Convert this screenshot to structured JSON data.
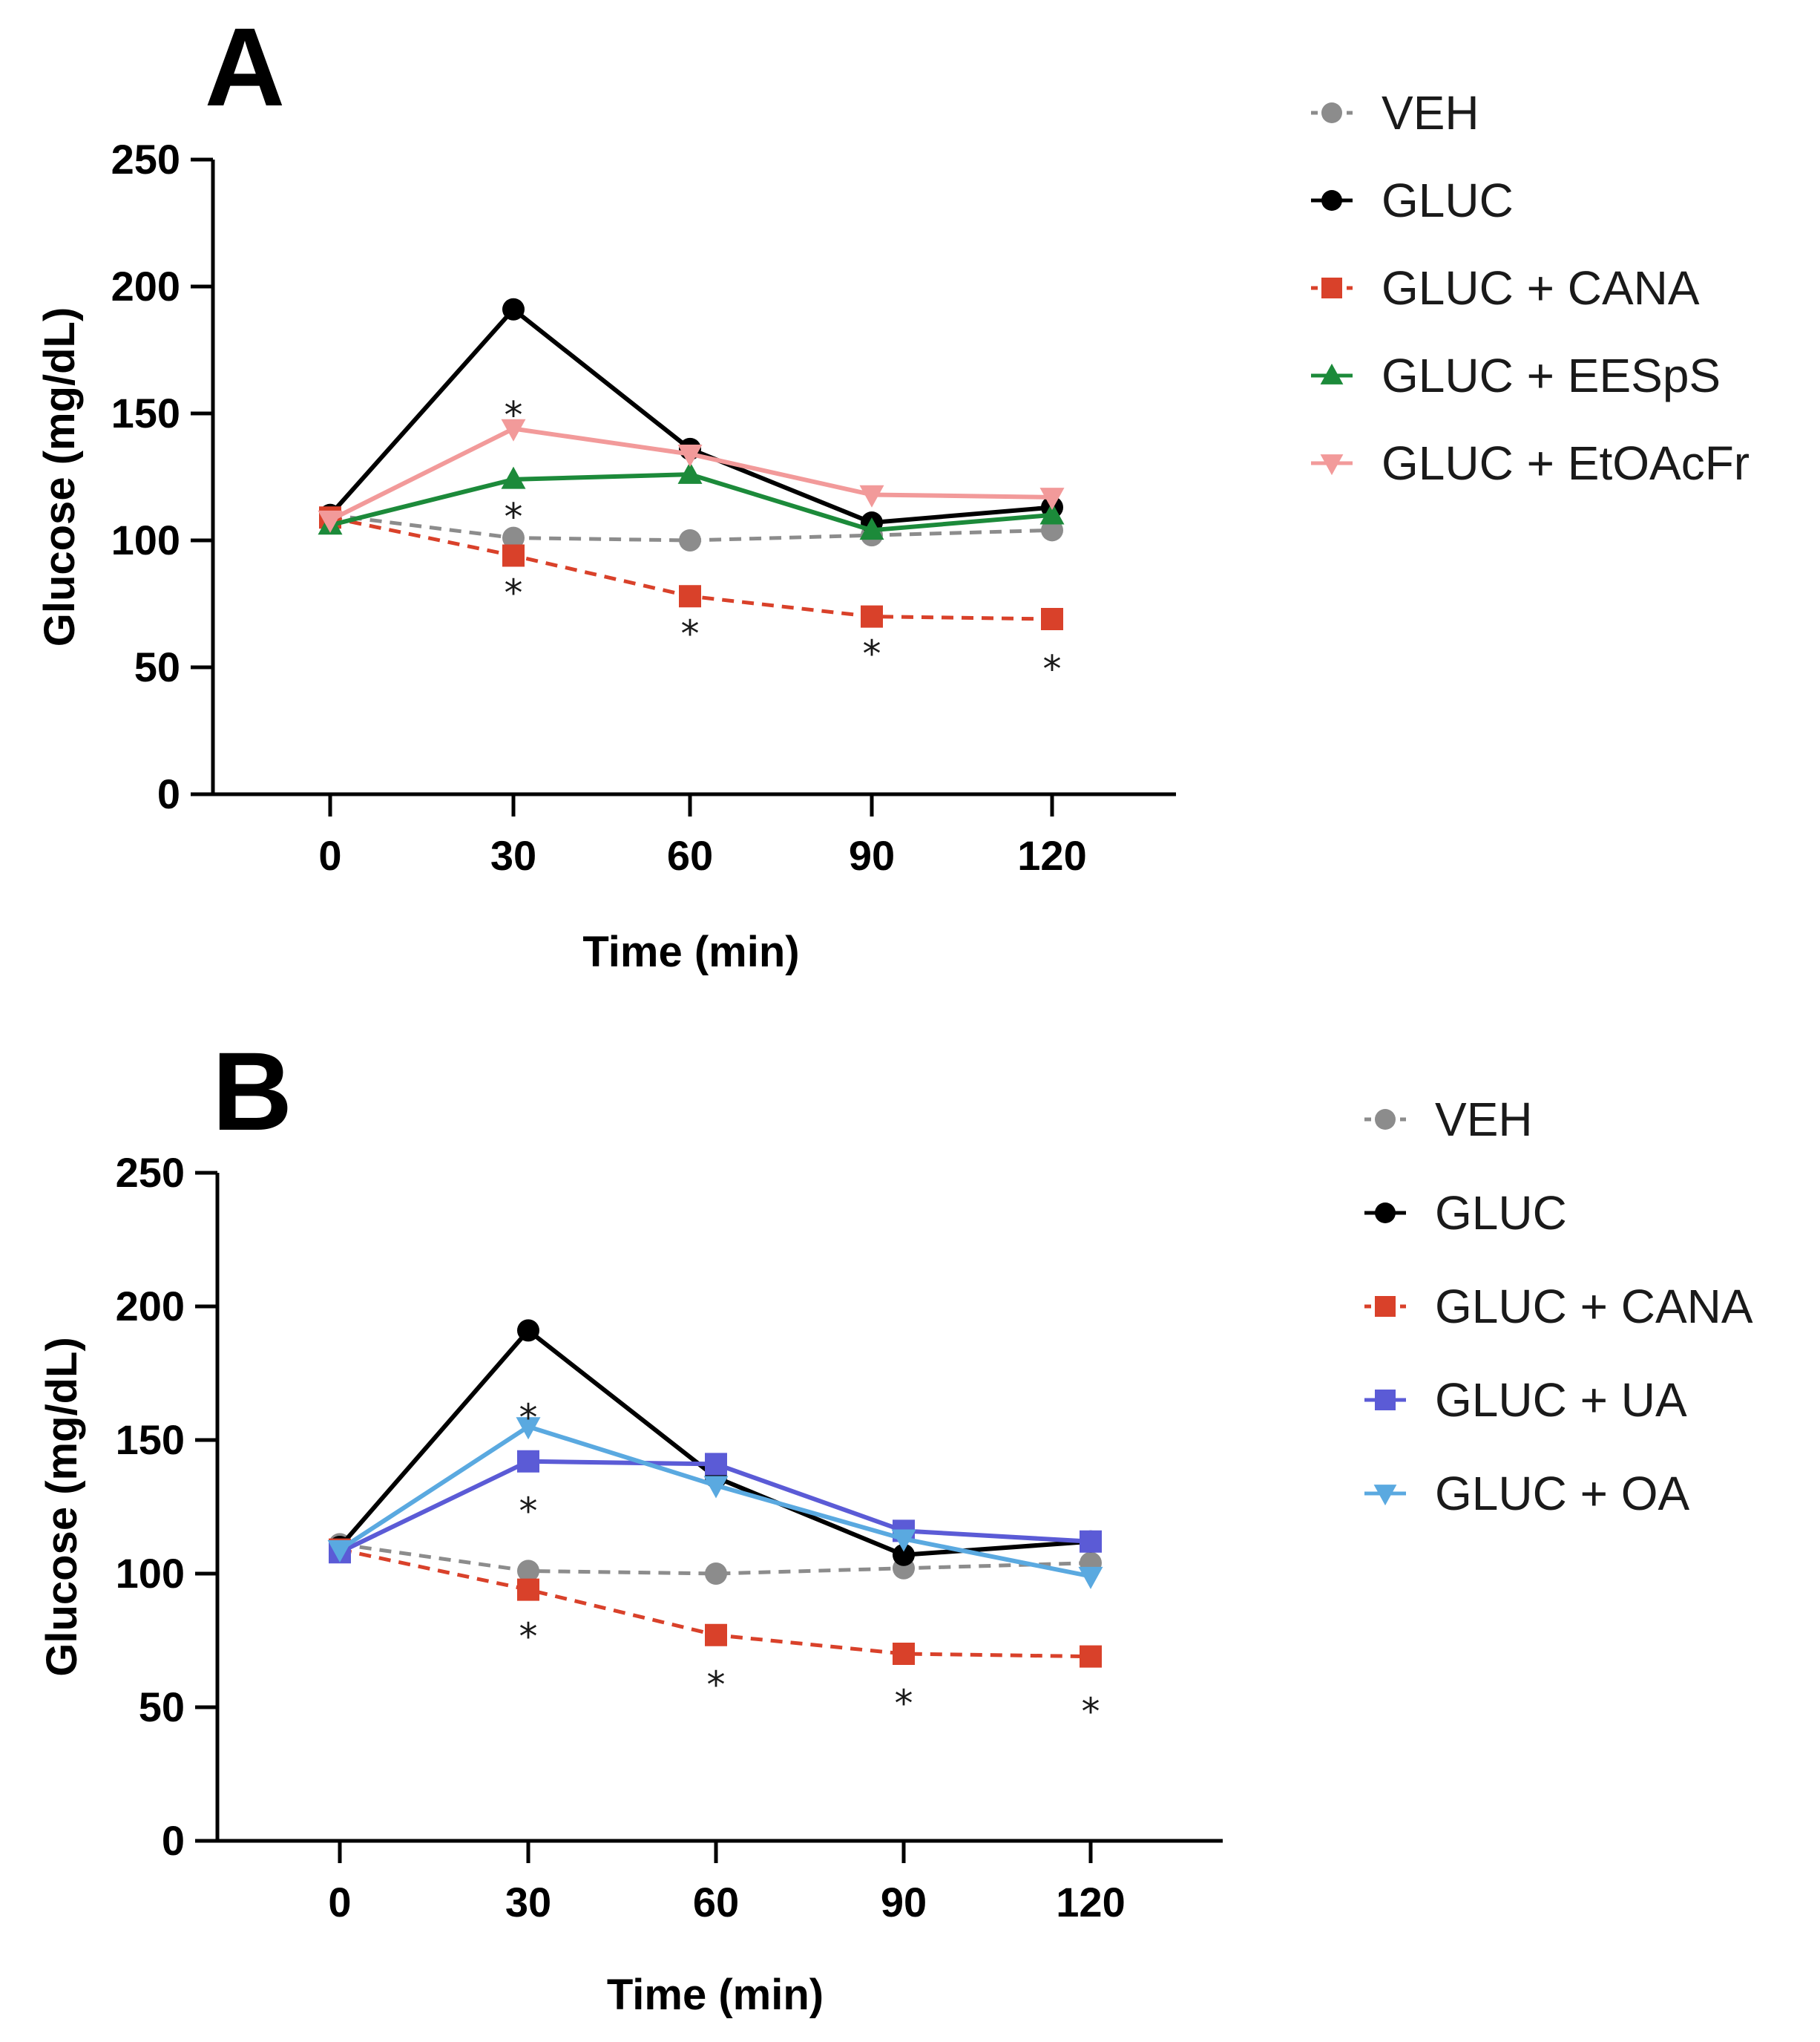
{
  "chart_data": [
    {
      "panel_label": "A",
      "type": "line",
      "xlabel": "Time (min)",
      "ylabel": "Glucose (mg/dL)",
      "x": [
        0,
        30,
        60,
        90,
        120
      ],
      "x_ticks": [
        "0",
        "30",
        "60",
        "90",
        "120"
      ],
      "y_ticks": [
        "0",
        "50",
        "100",
        "150",
        "200",
        "250"
      ],
      "ylim": [
        0,
        250
      ],
      "legend_position": "right",
      "series": [
        {
          "name": "VEH",
          "values": [
            110,
            101,
            100,
            102,
            104
          ],
          "color": "#8c8c8c",
          "marker": "circle",
          "dashed": true
        },
        {
          "name": "GLUC",
          "values": [
            110,
            191,
            136,
            107,
            113
          ],
          "color": "#000000",
          "marker": "circle",
          "dashed": false
        },
        {
          "name": "GLUC + CANA",
          "values": [
            109,
            94,
            78,
            70,
            69
          ],
          "color": "#d9412a",
          "marker": "square",
          "dashed": true
        },
        {
          "name": "GLUC + EESpS",
          "values": [
            106,
            124,
            126,
            104,
            110
          ],
          "color": "#1c8a3a",
          "marker": "triangle-up",
          "dashed": false
        },
        {
          "name": "GLUC + EtOAcFr",
          "values": [
            108,
            144,
            134,
            118,
            117
          ],
          "color": "#f29a9a",
          "marker": "triangle-down",
          "dashed": false
        }
      ],
      "annotations": [
        {
          "text": "*",
          "x": 30,
          "y": 153
        },
        {
          "text": "*",
          "x": 30,
          "y": 113
        },
        {
          "text": "*",
          "x": 30,
          "y": 83
        },
        {
          "text": "*",
          "x": 60,
          "y": 67
        },
        {
          "text": "*",
          "x": 90,
          "y": 59
        },
        {
          "text": "*",
          "x": 120,
          "y": 53
        }
      ]
    },
    {
      "panel_label": "B",
      "type": "line",
      "xlabel": "Time (min)",
      "ylabel": "Glucose (mg/dL)",
      "x": [
        0,
        30,
        60,
        90,
        120
      ],
      "x_ticks": [
        "0",
        "30",
        "60",
        "90",
        "120"
      ],
      "y_ticks": [
        "0",
        "50",
        "100",
        "150",
        "200",
        "250"
      ],
      "ylim": [
        0,
        250
      ],
      "legend_position": "right",
      "series": [
        {
          "name": "VEH",
          "values": [
            111,
            101,
            100,
            102,
            104
          ],
          "color": "#8c8c8c",
          "marker": "circle",
          "dashed": true
        },
        {
          "name": "GLUC",
          "values": [
            110,
            191,
            136,
            107,
            112
          ],
          "color": "#000000",
          "marker": "circle",
          "dashed": false
        },
        {
          "name": "GLUC + CANA",
          "values": [
            109,
            94,
            77,
            70,
            69
          ],
          "color": "#d9412a",
          "marker": "square",
          "dashed": true
        },
        {
          "name": "GLUC + UA",
          "values": [
            108,
            142,
            141,
            116,
            112
          ],
          "color": "#5b5bd6",
          "marker": "square",
          "dashed": false
        },
        {
          "name": "GLUC + OA",
          "values": [
            109,
            155,
            133,
            113,
            99
          ],
          "color": "#5aa9e0",
          "marker": "triangle-down",
          "dashed": false
        }
      ],
      "annotations": [
        {
          "text": "*",
          "x": 30,
          "y": 162
        },
        {
          "text": "*",
          "x": 30,
          "y": 127
        },
        {
          "text": "*",
          "x": 30,
          "y": 80
        },
        {
          "text": "*",
          "x": 60,
          "y": 62
        },
        {
          "text": "*",
          "x": 90,
          "y": 55
        },
        {
          "text": "*",
          "x": 120,
          "y": 52
        }
      ]
    }
  ]
}
